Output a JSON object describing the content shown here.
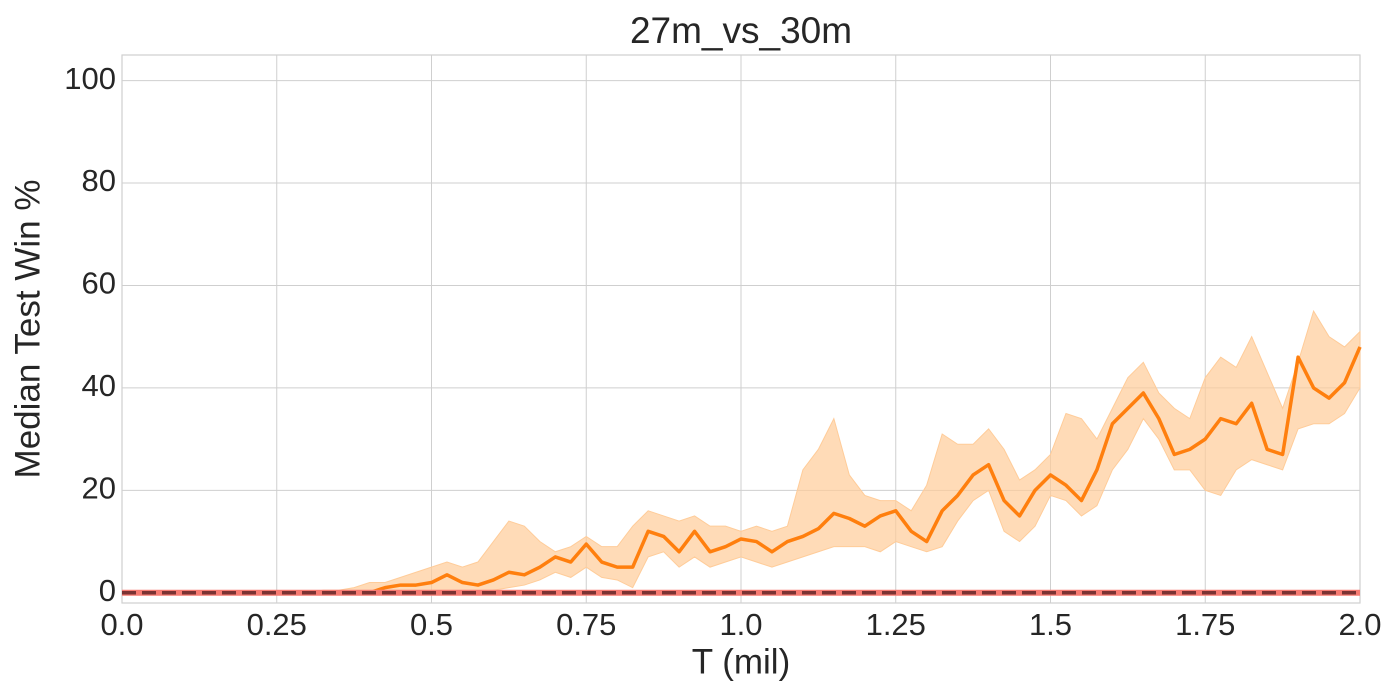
{
  "chart_data": {
    "type": "line",
    "title": "27m_vs_30m",
    "xlabel": "T (mil)",
    "ylabel": "Median Test Win %",
    "xlim": [
      0,
      2
    ],
    "ylim": [
      -2,
      105
    ],
    "xticks": [
      {
        "value": 0,
        "label": "0.0"
      },
      0.25,
      {
        "value": 0.5,
        "label": "0.5"
      },
      0.75,
      {
        "value": 1,
        "label": "1.0"
      },
      1.25,
      {
        "value": 1.5,
        "label": "1.5"
      },
      1.75,
      {
        "value": 2,
        "label": "2.0"
      }
    ],
    "yticks": [
      0,
      20,
      40,
      60,
      80,
      100
    ],
    "grid": true,
    "series": [
      {
        "color": "#ff7f0e",
        "band_color": "#ffcc99",
        "linestyle": "solid",
        "x": [
          0,
          0.025,
          0.05,
          0.075,
          0.1,
          0.125,
          0.15,
          0.175,
          0.2,
          0.225,
          0.25,
          0.275,
          0.3,
          0.325,
          0.35,
          0.375,
          0.4,
          0.425,
          0.45,
          0.475,
          0.5,
          0.525,
          0.55,
          0.575,
          0.6,
          0.625,
          0.65,
          0.675,
          0.7,
          0.725,
          0.75,
          0.775,
          0.8,
          0.825,
          0.85,
          0.875,
          0.9,
          0.925,
          0.95,
          0.975,
          1,
          1.025,
          1.05,
          1.075,
          1.1,
          1.125,
          1.15,
          1.175,
          1.2,
          1.225,
          1.25,
          1.275,
          1.3,
          1.325,
          1.35,
          1.375,
          1.4,
          1.425,
          1.45,
          1.475,
          1.5,
          1.525,
          1.55,
          1.575,
          1.6,
          1.625,
          1.65,
          1.675,
          1.7,
          1.725,
          1.75,
          1.775,
          1.8,
          1.825,
          1.85,
          1.875,
          1.9,
          1.925,
          1.95,
          1.975,
          2
        ],
        "values": [
          0,
          0,
          0,
          0,
          0,
          0,
          0,
          0,
          0,
          0,
          0,
          0,
          0,
          0,
          0,
          0,
          0,
          1,
          1.5,
          1.5,
          2,
          3.5,
          2,
          1.5,
          2.5,
          4,
          3.5,
          5,
          7,
          6,
          9.5,
          6,
          5,
          5,
          12,
          11,
          8,
          12,
          8,
          9,
          10.5,
          10,
          8,
          10,
          11,
          12.5,
          15.5,
          14.5,
          13,
          15,
          16,
          12,
          10,
          16,
          19,
          23,
          25,
          18,
          15,
          20,
          23,
          21,
          18,
          24,
          33,
          36,
          39,
          34,
          27,
          28,
          30,
          34,
          33,
          37,
          28,
          27,
          46,
          40,
          38,
          41,
          48
        ],
        "lower": [
          0,
          0,
          0,
          0,
          0,
          0,
          0,
          0,
          0,
          0,
          0,
          0,
          0,
          0,
          0,
          0,
          0,
          0,
          0,
          0,
          0,
          0,
          0,
          0,
          0.5,
          1,
          1.5,
          2.5,
          4,
          3,
          5,
          3,
          2.5,
          1,
          7,
          8,
          5,
          7,
          5,
          6,
          7,
          6,
          5,
          6,
          7,
          8,
          9,
          9,
          9,
          8,
          10,
          9,
          8,
          9,
          14,
          18,
          20,
          12,
          10,
          13,
          19,
          18,
          15,
          17,
          24,
          28,
          34,
          30,
          24,
          24,
          20,
          19,
          24,
          26,
          25,
          24,
          32,
          33,
          33,
          35,
          40
        ],
        "upper": [
          0,
          0,
          0,
          0,
          0,
          0,
          0,
          0,
          0,
          0,
          0,
          0,
          0,
          0.5,
          0.5,
          1,
          2,
          2,
          3,
          4,
          5,
          6,
          5,
          6,
          10,
          14,
          13,
          10,
          8,
          9,
          11,
          9,
          9,
          13,
          16,
          15,
          14,
          15,
          13,
          13,
          12,
          13,
          12,
          13,
          24,
          28,
          34,
          23,
          19,
          18,
          18,
          16,
          21,
          31,
          29,
          29,
          32,
          28,
          22,
          24,
          27,
          35,
          34,
          30,
          36,
          42,
          45,
          39,
          36,
          34,
          42,
          46,
          44,
          50,
          43,
          36,
          45,
          55,
          50,
          48,
          51
        ]
      },
      {
        "color": "#f77b72",
        "linestyle": "solid",
        "x": [
          0,
          2
        ],
        "values": [
          0,
          0
        ]
      },
      {
        "color": "#7b3333",
        "linestyle": "dashed",
        "x": [
          0,
          2
        ],
        "values": [
          0,
          0
        ]
      }
    ]
  }
}
